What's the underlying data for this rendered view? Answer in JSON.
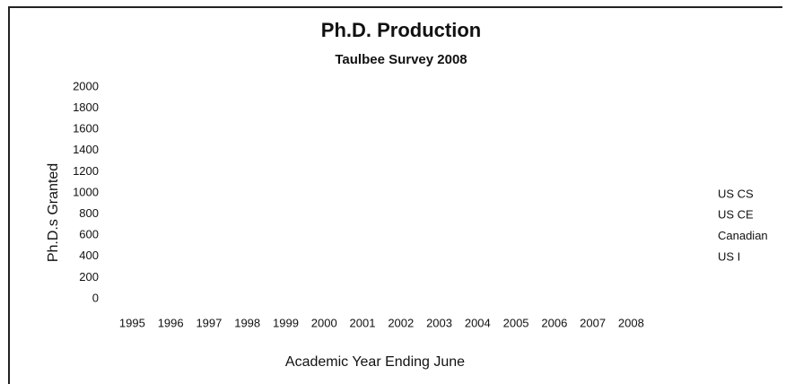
{
  "chart_data": {
    "type": "bar",
    "title": "Ph.D. Production",
    "subtitle": "Taulbee Survey 2008",
    "x_label": "Academic Year Ending June",
    "y_label": "Ph.D.s Granted",
    "categories": [
      "1995",
      "1996",
      "1997",
      "1998",
      "1999",
      "2000",
      "2001",
      "2002",
      "2003",
      "2004",
      "2005",
      "2006",
      "2007",
      "2008"
    ],
    "series": [
      {
        "name": "US CS",
        "values": [
          null,
          null,
          null,
          null,
          null,
          null,
          null,
          null,
          null,
          null,
          null,
          null,
          null,
          null
        ]
      },
      {
        "name": "US CE",
        "values": [
          null,
          null,
          null,
          null,
          null,
          null,
          null,
          null,
          null,
          null,
          null,
          null,
          null,
          null
        ]
      },
      {
        "name": "Canadian",
        "values": [
          null,
          null,
          null,
          null,
          null,
          null,
          null,
          null,
          null,
          null,
          null,
          null,
          null,
          null
        ]
      },
      {
        "name": "US I",
        "values": [
          null,
          null,
          null,
          null,
          null,
          null,
          null,
          null,
          null,
          null,
          null,
          null,
          null,
          null
        ]
      }
    ],
    "ylim": [
      0,
      2000
    ],
    "yticks": [
      0,
      200,
      400,
      600,
      800,
      1000,
      1200,
      1400,
      1600,
      1800,
      2000
    ],
    "grid": false
  }
}
